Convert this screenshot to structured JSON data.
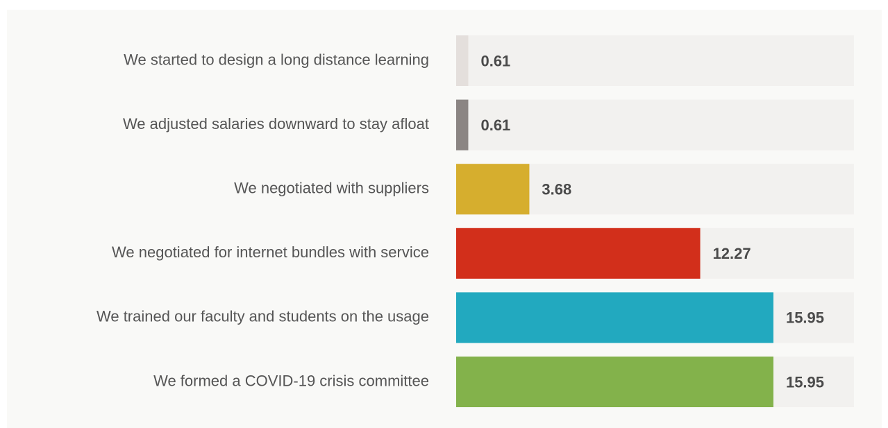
{
  "chart_data": {
    "type": "barh",
    "categories": [
      "We started to design a long distance learning",
      "We adjusted salaries downward to stay afloat",
      "We negotiated with suppliers",
      "We negotiated for internet bundles with service",
      "We trained our faculty and students on the usage",
      "We formed a COVID-19 crisis committee"
    ],
    "values": [
      0.61,
      0.61,
      3.68,
      12.27,
      15.95,
      15.95
    ],
    "colors": [
      "#e4dfdc",
      "#8b8583",
      "#d6ae2e",
      "#d22f1b",
      "#22a9bf",
      "#83b24b"
    ],
    "track_color": "#f2f1ef",
    "xlim": [
      0,
      20
    ]
  }
}
